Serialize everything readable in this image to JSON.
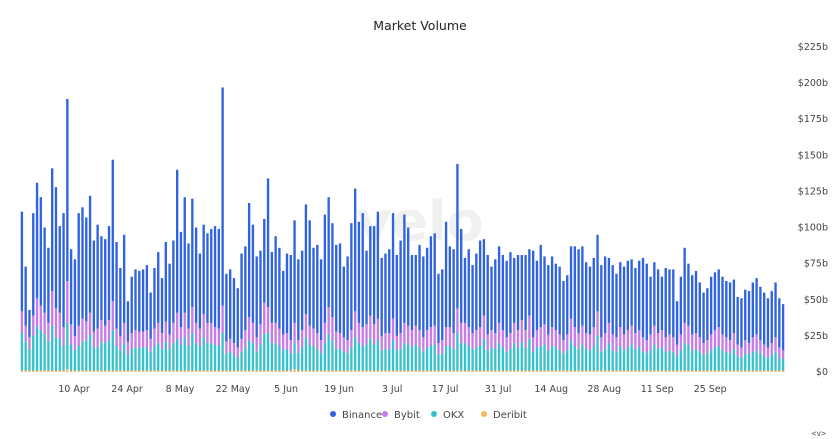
{
  "chart_data": {
    "type": "bar",
    "stacked": true,
    "title": "Market Volume",
    "xlabel": "",
    "ylabel": "",
    "y_axis_position": "right",
    "ylim": [
      0,
      225
    ],
    "y_ticks": [
      "$0",
      "$25b",
      "$50b",
      "$75b",
      "$100b",
      "$125b",
      "$150b",
      "$175b",
      "$200b",
      "$225b"
    ],
    "x_tick_labels": [
      "10 Apr",
      "24 Apr",
      "8 May",
      "22 May",
      "5 Jun",
      "19 Jun",
      "3 Jul",
      "17 Jul",
      "31 Jul",
      "14 Aug",
      "28 Aug",
      "11 Sep",
      "25 Sep"
    ],
    "x_tick_indices": [
      9,
      23,
      37,
      51,
      65,
      79,
      93,
      107,
      121,
      135,
      149,
      163,
      177
    ],
    "grid": false,
    "legend_position": "bottom",
    "colors": {
      "Binance": "#2f63e0",
      "Bybit": "#c77ce8",
      "OKX": "#36c2cc",
      "Deribit": "#f4b860"
    },
    "series": [
      {
        "name": "Deribit",
        "values": [
          1,
          1,
          1,
          1,
          1,
          1,
          1,
          1,
          1,
          1,
          1,
          1,
          2,
          1,
          1,
          1,
          1,
          1,
          1,
          1,
          1,
          1,
          1,
          1,
          1,
          1,
          1,
          1,
          1,
          1,
          1,
          1,
          1,
          1,
          1,
          1,
          1,
          1,
          1,
          1,
          1,
          1,
          1,
          1,
          1,
          1,
          1,
          1,
          1,
          1,
          1,
          1,
          1,
          1,
          1,
          1,
          1,
          1,
          1,
          1,
          1,
          1,
          1,
          1,
          1,
          1,
          1,
          1,
          1,
          1,
          1,
          1,
          2,
          1,
          1,
          1,
          1,
          1,
          1,
          1,
          1,
          1,
          1,
          1,
          1,
          1,
          1,
          1,
          1,
          1,
          1,
          1,
          1,
          1,
          1,
          1,
          1,
          1,
          1,
          1,
          1,
          1,
          1,
          1,
          1,
          1,
          1,
          1,
          1,
          1,
          1,
          1,
          1,
          1,
          1,
          1,
          1,
          1,
          1,
          1,
          1,
          1,
          1,
          1,
          1,
          1,
          1,
          1,
          1,
          1,
          1,
          1,
          1,
          1,
          1,
          1,
          1,
          1,
          1,
          1,
          1,
          1,
          1,
          1,
          1,
          1,
          1,
          1,
          1,
          1,
          1,
          1,
          1,
          1,
          1,
          1,
          1,
          1,
          1,
          1,
          1,
          1,
          1,
          1,
          1,
          1,
          1,
          1,
          1,
          1,
          1,
          1,
          1,
          1,
          1,
          1,
          1,
          1,
          1,
          1,
          1,
          1,
          1,
          1,
          1,
          1,
          1,
          1,
          1,
          1,
          1,
          1,
          1,
          1,
          1,
          1,
          1,
          1,
          1,
          1,
          1,
          1
        ]
      },
      {
        "name": "OKX",
        "values": [
          26,
          20,
          15,
          24,
          31,
          28,
          25,
          20,
          31,
          23,
          22,
          17,
          32,
          18,
          14,
          17,
          20,
          21,
          25,
          16,
          16,
          20,
          19,
          21,
          28,
          17,
          14,
          19,
          11,
          15,
          16,
          16,
          16,
          16,
          13,
          17,
          19,
          15,
          20,
          15,
          19,
          22,
          18,
          23,
          17,
          26,
          19,
          17,
          23,
          19,
          19,
          18,
          17,
          26,
          12,
          13,
          11,
          9,
          13,
          16,
          21,
          19,
          13,
          18,
          25,
          26,
          19,
          19,
          17,
          14,
          15,
          12,
          18,
          12,
          16,
          23,
          18,
          17,
          15,
          12,
          19,
          25,
          21,
          15,
          15,
          13,
          12,
          16,
          23,
          19,
          17,
          18,
          22,
          18,
          21,
          14,
          15,
          15,
          21,
          14,
          15,
          19,
          18,
          16,
          18,
          16,
          13,
          16,
          17,
          18,
          11,
          12,
          17,
          17,
          15,
          26,
          19,
          19,
          17,
          15,
          16,
          17,
          22,
          14,
          16,
          15,
          19,
          16,
          13,
          15,
          19,
          16,
          20,
          16,
          22,
          13,
          16,
          17,
          18,
          14,
          17,
          16,
          14,
          12,
          14,
          21,
          17,
          15,
          18,
          15,
          14,
          17,
          24,
          13,
          15,
          19,
          14,
          13,
          17,
          14,
          16,
          18,
          15,
          16,
          13,
          12,
          14,
          18,
          15,
          16,
          13,
          14,
          13,
          10,
          14,
          19,
          18,
          14,
          15,
          13,
          11,
          12,
          14,
          16,
          17,
          14,
          13,
          12,
          15,
          10,
          9,
          12,
          11,
          13,
          14,
          12,
          10,
          9,
          11,
          13,
          9,
          8,
          10,
          8,
          7
        ]
      },
      {
        "name": "Bybit",
        "values": [
          15,
          11,
          8,
          14,
          19,
          17,
          15,
          13,
          24,
          20,
          18,
          13,
          29,
          14,
          10,
          14,
          16,
          13,
          15,
          11,
          13,
          15,
          12,
          14,
          20,
          12,
          10,
          14,
          9,
          11,
          12,
          11,
          11,
          12,
          9,
          12,
          14,
          11,
          14,
          10,
          14,
          18,
          12,
          17,
          12,
          18,
          14,
          12,
          16,
          14,
          14,
          12,
          12,
          19,
          8,
          9,
          8,
          7,
          9,
          12,
          16,
          14,
          10,
          14,
          22,
          18,
          14,
          14,
          12,
          11,
          11,
          9,
          14,
          9,
          12,
          16,
          13,
          12,
          11,
          9,
          14,
          19,
          16,
          12,
          11,
          10,
          9,
          12,
          18,
          14,
          13,
          14,
          16,
          14,
          15,
          10,
          11,
          11,
          15,
          10,
          11,
          14,
          13,
          12,
          13,
          12,
          10,
          12,
          13,
          13,
          8,
          9,
          13,
          13,
          11,
          17,
          14,
          14,
          13,
          11,
          12,
          13,
          16,
          11,
          12,
          11,
          14,
          12,
          10,
          11,
          14,
          12,
          15,
          12,
          16,
          10,
          12,
          13,
          14,
          11,
          13,
          12,
          11,
          9,
          11,
          15,
          13,
          11,
          13,
          11,
          11,
          13,
          17,
          10,
          11,
          14,
          11,
          10,
          13,
          11,
          12,
          13,
          11,
          12,
          10,
          9,
          11,
          13,
          11,
          12,
          10,
          11,
          10,
          8,
          11,
          14,
          13,
          11,
          11,
          10,
          8,
          9,
          11,
          12,
          13,
          11,
          10,
          9,
          11,
          8,
          7,
          9,
          8,
          10,
          11,
          9,
          8,
          7,
          8,
          10,
          7,
          6,
          8,
          6,
          5
        ]
      },
      {
        "name": "Binance",
        "values": [
          69,
          41,
          19,
          71,
          80,
          75,
          59,
          52,
          85,
          84,
          60,
          79,
          126,
          52,
          53,
          78,
          77,
          72,
          81,
          63,
          72,
          58,
          60,
          65,
          98,
          60,
          47,
          61,
          28,
          39,
          42,
          42,
          43,
          45,
          32,
          42,
          49,
          38,
          55,
          49,
          57,
          99,
          66,
          80,
          59,
          75,
          66,
          52,
          62,
          62,
          65,
          70,
          69,
          151,
          47,
          48,
          45,
          41,
          59,
          58,
          79,
          68,
          56,
          51,
          58,
          89,
          49,
          60,
          56,
          44,
          55,
          59,
          71,
          56,
          55,
          76,
          73,
          56,
          61,
          56,
          75,
          76,
          65,
          60,
          62,
          49,
          58,
          74,
          85,
          70,
          79,
          51,
          62,
          68,
          74,
          54,
          55,
          58,
          73,
          56,
          64,
          75,
          68,
          52,
          49,
          59,
          56,
          57,
          63,
          64,
          48,
          49,
          73,
          56,
          58,
          100,
          65,
          45,
          54,
          47,
          53,
          60,
          53,
          55,
          44,
          51,
          53,
          52,
          53,
          56,
          45,
          52,
          45,
          52,
          46,
          60,
          48,
          57,
          47,
          48,
          49,
          46,
          47,
          41,
          41,
          50,
          56,
          58,
          55,
          49,
          47,
          48,
          53,
          50,
          53,
          45,
          48,
          44,
          45,
          47,
          48,
          46,
          45,
          48,
          55,
          53,
          40,
          44,
          44,
          37,
          48,
          45,
          47,
          30,
          40,
          52,
          43,
          41,
          43,
          38,
          35,
          36,
          40,
          40,
          40,
          40,
          39,
          40,
          37,
          33,
          34,
          35,
          36,
          38,
          39,
          37,
          36,
          34,
          36,
          38,
          34,
          32,
          34,
          30,
          14
        ]
      }
    ],
    "legend": [
      "Binance",
      "Bybit",
      "OKX",
      "Deribit"
    ]
  },
  "watermark": "velo",
  "corner_label": "<v>"
}
